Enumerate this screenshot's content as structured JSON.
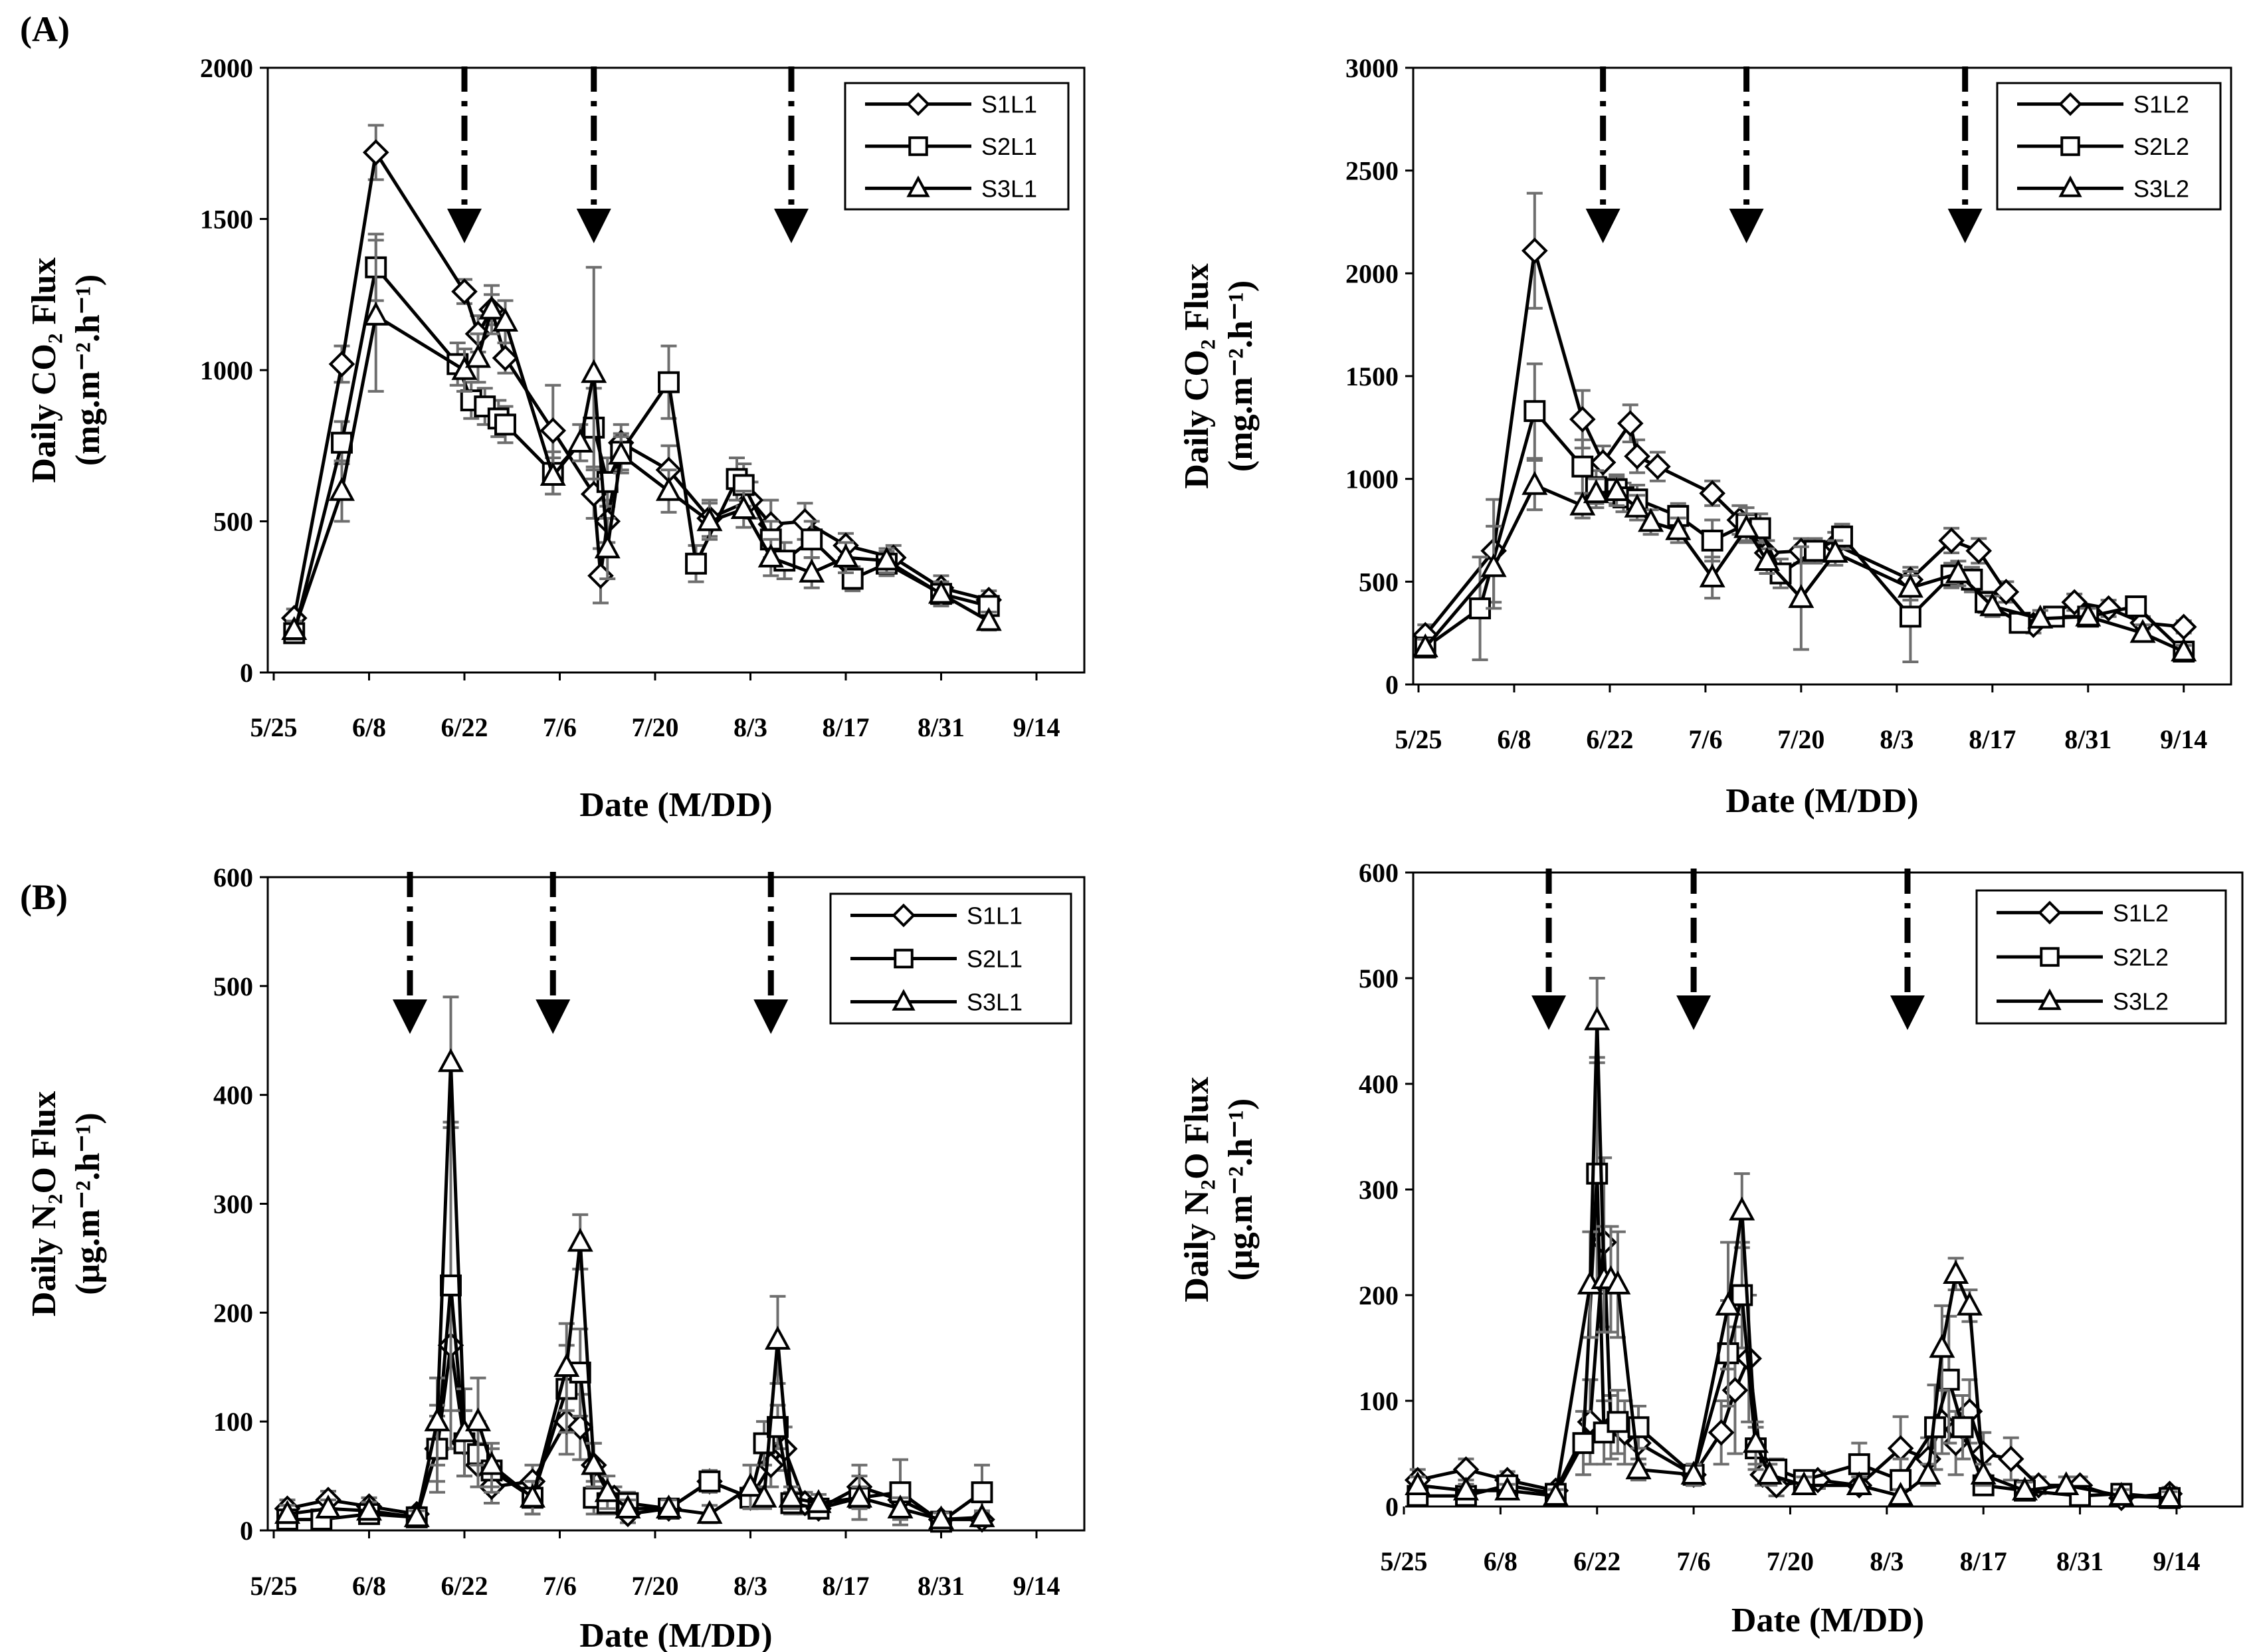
{
  "panel_labels": {
    "A": "(A)",
    "B": "(B)"
  },
  "chart_data": [
    {
      "id": "co2-l1",
      "type": "line",
      "panel": "A",
      "ylabel_line1": "Daily CO₂ Flux",
      "ylabel_line2": "(mg.m⁻².h⁻¹)",
      "xlabel": "Date (M/DD)",
      "ylim": [
        0,
        2000
      ],
      "yticks": [
        "0",
        "500",
        "1000",
        "1500",
        "2000"
      ],
      "xlim_days": [
        0,
        120
      ],
      "xticks": [
        "5/25",
        "6/8",
        "6/22",
        "7/6",
        "7/20",
        "8/3",
        "8/17",
        "8/31",
        "9/14"
      ],
      "event_days": [
        28,
        47,
        76
      ],
      "legend_position": "top-right",
      "series": [
        {
          "name": "S1L1",
          "marker": "diamond",
          "x": [
            3,
            10,
            15,
            28,
            30,
            32,
            34,
            41,
            47,
            48,
            49,
            51,
            58,
            64,
            70,
            73,
            78,
            84,
            91,
            98,
            105
          ],
          "y": [
            180,
            1020,
            1720,
            1260,
            1120,
            1200,
            1040,
            800,
            590,
            320,
            500,
            760,
            670,
            510,
            570,
            490,
            500,
            420,
            380,
            280,
            240
          ],
          "err": [
            30,
            60,
            90,
            40,
            60,
            50,
            50,
            150,
            80,
            90,
            70,
            60,
            80,
            60,
            60,
            80,
            60,
            40,
            40,
            40,
            30
          ]
        },
        {
          "name": "S2L1",
          "marker": "square",
          "x": [
            3,
            10,
            15,
            27,
            29,
            31,
            33,
            34,
            41,
            47,
            49,
            51,
            58,
            62,
            68,
            69,
            73,
            75,
            79,
            85,
            90,
            98,
            105
          ],
          "y": [
            130,
            760,
            1340,
            1020,
            900,
            880,
            840,
            820,
            660,
            810,
            630,
            730,
            960,
            360,
            640,
            620,
            440,
            370,
            440,
            310,
            360,
            260,
            220
          ],
          "err": [
            30,
            70,
            110,
            70,
            60,
            60,
            60,
            60,
            70,
            130,
            80,
            60,
            120,
            60,
            70,
            70,
            60,
            60,
            60,
            40,
            40,
            40,
            30
          ]
        },
        {
          "name": "S3L1",
          "marker": "triangle",
          "x": [
            3,
            10,
            15,
            28,
            30,
            32,
            34,
            41,
            45,
            47,
            49,
            51,
            58,
            64,
            69,
            73,
            79,
            84,
            90,
            98,
            105
          ],
          "y": [
            140,
            600,
            1180,
            1000,
            1040,
            1200,
            1160,
            650,
            760,
            990,
            410,
            720,
            600,
            500,
            540,
            380,
            330,
            380,
            370,
            260,
            170
          ],
          "err": [
            30,
            100,
            250,
            70,
            80,
            80,
            70,
            60,
            60,
            350,
            100,
            60,
            70,
            60,
            60,
            60,
            50,
            50,
            40,
            40,
            30
          ]
        }
      ]
    },
    {
      "id": "co2-l2",
      "type": "line",
      "panel": "A",
      "ylabel_line1": "Daily CO₂ Flux",
      "ylabel_line2": "(mg.m⁻².h⁻¹)",
      "xlabel": "Date (M/DD)",
      "ylim": [
        0,
        3000
      ],
      "yticks": [
        "0",
        "500",
        "1000",
        "1500",
        "2000",
        "2500",
        "3000"
      ],
      "xlim_days": [
        0,
        120
      ],
      "xticks": [
        "5/25",
        "6/8",
        "6/22",
        "7/6",
        "7/20",
        "8/3",
        "8/17",
        "8/31",
        "9/14"
      ],
      "event_days": [
        27,
        48,
        80
      ],
      "legend_position": "top-right",
      "series": [
        {
          "name": "S1L2",
          "marker": "diamond",
          "x": [
            1,
            11,
            17,
            24,
            27,
            31,
            32,
            35,
            43,
            47,
            51,
            56,
            61,
            72,
            78,
            82,
            86,
            90,
            96,
            101,
            106,
            112
          ],
          "y": [
            240,
            650,
            2110,
            1290,
            1080,
            1270,
            1110,
            1060,
            930,
            800,
            640,
            650,
            680,
            510,
            700,
            650,
            450,
            290,
            400,
            370,
            300,
            280
          ],
          "err": [
            50,
            250,
            280,
            140,
            80,
            90,
            80,
            70,
            60,
            70,
            60,
            60,
            60,
            60,
            60,
            60,
            50,
            40,
            40,
            40,
            30,
            30
          ]
        },
        {
          "name": "S2L2",
          "marker": "square",
          "x": [
            1,
            9,
            17,
            24,
            26,
            29,
            30,
            32,
            38,
            43,
            48,
            50,
            53,
            58,
            62,
            72,
            78,
            81,
            83,
            88,
            93,
            98,
            105,
            112
          ],
          "y": [
            180,
            370,
            1330,
            1060,
            960,
            950,
            910,
            900,
            820,
            700,
            780,
            760,
            540,
            650,
            720,
            330,
            530,
            510,
            400,
            300,
            330,
            330,
            380,
            160
          ],
          "err": [
            40,
            250,
            230,
            130,
            80,
            70,
            70,
            70,
            60,
            100,
            80,
            70,
            70,
            60,
            60,
            220,
            60,
            60,
            50,
            40,
            40,
            40,
            40,
            30
          ]
        },
        {
          "name": "S3L2",
          "marker": "triangle",
          "x": [
            1,
            11,
            17,
            24,
            26,
            29,
            32,
            34,
            38,
            43,
            48,
            51,
            56,
            61,
            72,
            79,
            84,
            91,
            98,
            106,
            112
          ],
          "y": [
            180,
            570,
            970,
            870,
            930,
            940,
            860,
            790,
            750,
            520,
            760,
            600,
            420,
            640,
            470,
            540,
            380,
            320,
            330,
            250,
            160
          ],
          "err": [
            40,
            200,
            120,
            60,
            70,
            70,
            60,
            60,
            60,
            100,
            70,
            60,
            250,
            60,
            60,
            60,
            50,
            40,
            40,
            40,
            30
          ]
        }
      ]
    },
    {
      "id": "n2o-l1",
      "type": "line",
      "panel": "B",
      "ylabel_line1": "Daily N₂O Flux",
      "ylabel_line2": "(μg.m⁻².h⁻¹)",
      "xlabel": "Date (M/DD)",
      "ylim": [
        0,
        600
      ],
      "yticks": [
        "0",
        "100",
        "200",
        "300",
        "400",
        "500",
        "600"
      ],
      "xlim_days": [
        0,
        120
      ],
      "xticks": [
        "5/25",
        "6/8",
        "6/22",
        "7/6",
        "7/20",
        "8/3",
        "8/17",
        "8/31",
        "9/14"
      ],
      "event_days": [
        20,
        41,
        73
      ],
      "legend_position": "top-right",
      "series": [
        {
          "name": "S1L1",
          "marker": "diamond",
          "x": [
            2,
            8,
            14,
            21,
            24,
            26,
            28,
            30,
            32,
            38,
            43,
            45,
            47,
            50,
            52,
            58,
            64,
            70,
            73,
            75,
            78,
            80,
            86,
            92,
            98,
            104
          ],
          "y": [
            20,
            28,
            22,
            15,
            75,
            170,
            80,
            60,
            40,
            45,
            100,
            95,
            60,
            30,
            15,
            20,
            45,
            30,
            60,
            75,
            25,
            20,
            40,
            28,
            10,
            10
          ],
          "err": [
            8,
            8,
            8,
            6,
            30,
            60,
            30,
            20,
            15,
            15,
            30,
            30,
            20,
            10,
            8,
            8,
            10,
            10,
            20,
            20,
            10,
            8,
            20,
            10,
            6,
            6
          ],
          "color": "#000000"
        },
        {
          "name": "S2L1",
          "marker": "square",
          "x": [
            2,
            7,
            14,
            21,
            24,
            26,
            28,
            30,
            32,
            38,
            43,
            45,
            47,
            49,
            52,
            58,
            64,
            70,
            72,
            74,
            76,
            80,
            86,
            92,
            98,
            104
          ],
          "y": [
            10,
            10,
            15,
            12,
            75,
            225,
            80,
            70,
            55,
            30,
            130,
            145,
            30,
            25,
            25,
            20,
            45,
            30,
            80,
            95,
            25,
            20,
            30,
            35,
            8,
            35
          ],
          "err": [
            6,
            6,
            6,
            6,
            40,
            150,
            30,
            30,
            20,
            15,
            40,
            40,
            15,
            10,
            10,
            8,
            10,
            10,
            20,
            20,
            10,
            8,
            20,
            30,
            6,
            25
          ],
          "color": "#000000"
        },
        {
          "name": "S3L1",
          "marker": "triangle",
          "x": [
            2,
            8,
            14,
            21,
            24,
            26,
            28,
            30,
            32,
            38,
            43,
            45,
            47,
            49,
            52,
            58,
            64,
            70,
            72,
            74,
            76,
            80,
            86,
            92,
            98,
            104
          ],
          "y": [
            15,
            20,
            18,
            12,
            100,
            430,
            90,
            100,
            60,
            30,
            150,
            265,
            60,
            35,
            20,
            20,
            15,
            40,
            30,
            175,
            30,
            25,
            30,
            20,
            10,
            12
          ],
          "err": [
            8,
            8,
            8,
            6,
            40,
            60,
            40,
            40,
            20,
            15,
            40,
            25,
            20,
            15,
            8,
            8,
            8,
            20,
            10,
            40,
            10,
            8,
            10,
            10,
            6,
            6
          ],
          "color": "#000000"
        }
      ]
    },
    {
      "id": "n2o-l2",
      "type": "line",
      "panel": "B",
      "ylabel_line1": "Daily N₂O Flux",
      "ylabel_line2": "(μg.m⁻².h⁻¹)",
      "xlabel": "Date (M/DD)",
      "ylim": [
        0,
        600
      ],
      "yticks": [
        "0",
        "100",
        "200",
        "300",
        "400",
        "500",
        "600"
      ],
      "xlim_days": [
        0,
        120
      ],
      "xticks": [
        "5/25",
        "6/8",
        "6/22",
        "7/6",
        "7/20",
        "8/3",
        "8/17",
        "8/31",
        "9/14"
      ],
      "event_days": [
        21,
        42,
        73
      ],
      "legend_position": "top-right",
      "series": [
        {
          "name": "S1L2",
          "marker": "diamond",
          "x": [
            2,
            9,
            15,
            22,
            27,
            29,
            30,
            32,
            34,
            42,
            46,
            48,
            50,
            52,
            54,
            60,
            66,
            72,
            76,
            78,
            80,
            82,
            84,
            88,
            92,
            98,
            104,
            111
          ],
          "y": [
            25,
            35,
            25,
            15,
            80,
            250,
            75,
            70,
            60,
            30,
            70,
            110,
            140,
            30,
            20,
            25,
            20,
            55,
            45,
            80,
            60,
            90,
            50,
            45,
            20,
            20,
            8,
            12
          ],
          "err": [
            10,
            10,
            8,
            6,
            40,
            80,
            30,
            30,
            20,
            10,
            30,
            60,
            60,
            10,
            10,
            8,
            8,
            30,
            20,
            30,
            30,
            30,
            20,
            20,
            8,
            8,
            6,
            6
          ]
        },
        {
          "name": "S2L2",
          "marker": "square",
          "x": [
            2,
            9,
            15,
            22,
            26,
            28,
            29,
            31,
            34,
            42,
            47,
            49,
            51,
            54,
            58,
            66,
            72,
            77,
            79,
            81,
            84,
            90,
            98,
            104,
            111
          ],
          "y": [
            10,
            10,
            20,
            12,
            60,
            315,
            70,
            80,
            75,
            30,
            145,
            200,
            55,
            35,
            25,
            40,
            25,
            75,
            120,
            75,
            20,
            15,
            10,
            12,
            8
          ],
          "err": [
            8,
            6,
            6,
            6,
            30,
            110,
            30,
            30,
            20,
            10,
            50,
            50,
            20,
            10,
            8,
            20,
            20,
            40,
            60,
            30,
            8,
            6,
            6,
            6,
            6
          ]
        },
        {
          "name": "S3L2",
          "marker": "triangle",
          "x": [
            2,
            9,
            15,
            22,
            27,
            28,
            29,
            30,
            31,
            34,
            42,
            47,
            49,
            51,
            53,
            58,
            66,
            72,
            76,
            78,
            80,
            82,
            84,
            90,
            96,
            104,
            111
          ],
          "y": [
            20,
            15,
            15,
            10,
            210,
            460,
            215,
            215,
            210,
            35,
            30,
            190,
            280,
            60,
            30,
            20,
            20,
            10,
            30,
            150,
            220,
            190,
            30,
            15,
            20,
            10,
            8
          ],
          "err": [
            8,
            6,
            6,
            6,
            50,
            40,
            50,
            50,
            50,
            10,
            10,
            60,
            35,
            20,
            10,
            8,
            8,
            6,
            10,
            40,
            15,
            15,
            10,
            8,
            8,
            6,
            6
          ]
        }
      ]
    }
  ]
}
